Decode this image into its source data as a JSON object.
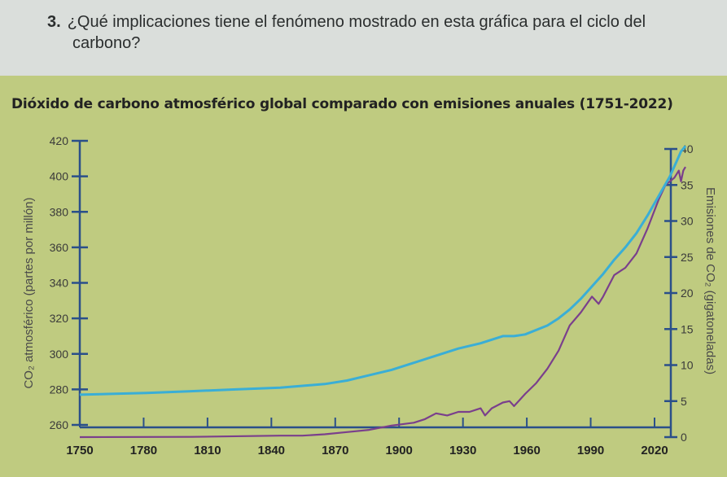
{
  "question": {
    "number": "3.",
    "text_line1": "¿Qué implicaciones tiene el fenómeno mostrado en esta gráfica para el ciclo del",
    "text_line2": "carbono?"
  },
  "chart_data": {
    "type": "line",
    "title": "Dióxido de carbono atmosférico global comparado con emisiones anuales (1751-2022)",
    "ylabel_left": "CO₂ atmosférico (partes por millón)",
    "ylabel_right": "Emisiones de CO₂ (gigatoneladas)",
    "xlim": [
      1750,
      2022
    ],
    "ylim_left": [
      260,
      420
    ],
    "ylim_right": [
      0,
      40
    ],
    "x_ticks": [
      1750,
      1780,
      1810,
      1840,
      1870,
      1900,
      1930,
      1960,
      1990,
      2020
    ],
    "y_left_ticks": [
      260,
      280,
      300,
      320,
      340,
      360,
      380,
      400,
      420
    ],
    "y_right_ticks": [
      0,
      5,
      10,
      15,
      20,
      25,
      30,
      35,
      40
    ],
    "colors": {
      "co2_ppm": "#3aaed6",
      "emissions": "#7a3f8c",
      "axes": "#2a4f8a",
      "background": "#bfcb80"
    },
    "series": [
      {
        "name": "",
        "axis": "left",
        "x": [
          1750,
          1780,
          1800,
          1820,
          1840,
          1850,
          1860,
          1870,
          1880,
          1890,
          1900,
          1910,
          1920,
          1930,
          1940,
          1945,
          1950,
          1960,
          1965,
          1970,
          1975,
          1980,
          1985,
          1990,
          1995,
          2000,
          2005,
          2010,
          2015,
          2020,
          2022
        ],
        "values": [
          277,
          278,
          279,
          280,
          281,
          282,
          283,
          285,
          288,
          291,
          295,
          299,
          303,
          306,
          310,
          310,
          311,
          316,
          320,
          325,
          331,
          338,
          345,
          353,
          360,
          368,
          378,
          389,
          400,
          414,
          417
        ]
      },
      {
        "name": "",
        "axis": "right",
        "x": [
          1750,
          1800,
          1840,
          1850,
          1860,
          1870,
          1880,
          1890,
          1900,
          1905,
          1910,
          1915,
          1920,
          1925,
          1930,
          1932,
          1935,
          1940,
          1943,
          1945,
          1950,
          1955,
          1960,
          1965,
          1970,
          1975,
          1980,
          1983,
          1985,
          1990,
          1995,
          2000,
          2005,
          2010,
          2013,
          2015,
          2017,
          2019,
          2020,
          2021,
          2022
        ],
        "values": [
          0,
          0.03,
          0.2,
          0.2,
          0.4,
          0.7,
          1.0,
          1.6,
          2.0,
          2.5,
          3.3,
          3.0,
          3.5,
          3.5,
          4.0,
          3.0,
          4.0,
          4.8,
          5.0,
          4.3,
          6.0,
          7.5,
          9.5,
          12.0,
          15.5,
          17.3,
          19.5,
          18.5,
          19.5,
          22.5,
          23.5,
          25.5,
          29.0,
          33.0,
          35.0,
          35.5,
          36.0,
          37.0,
          35.5,
          37.0,
          37.5
        ]
      }
    ]
  }
}
